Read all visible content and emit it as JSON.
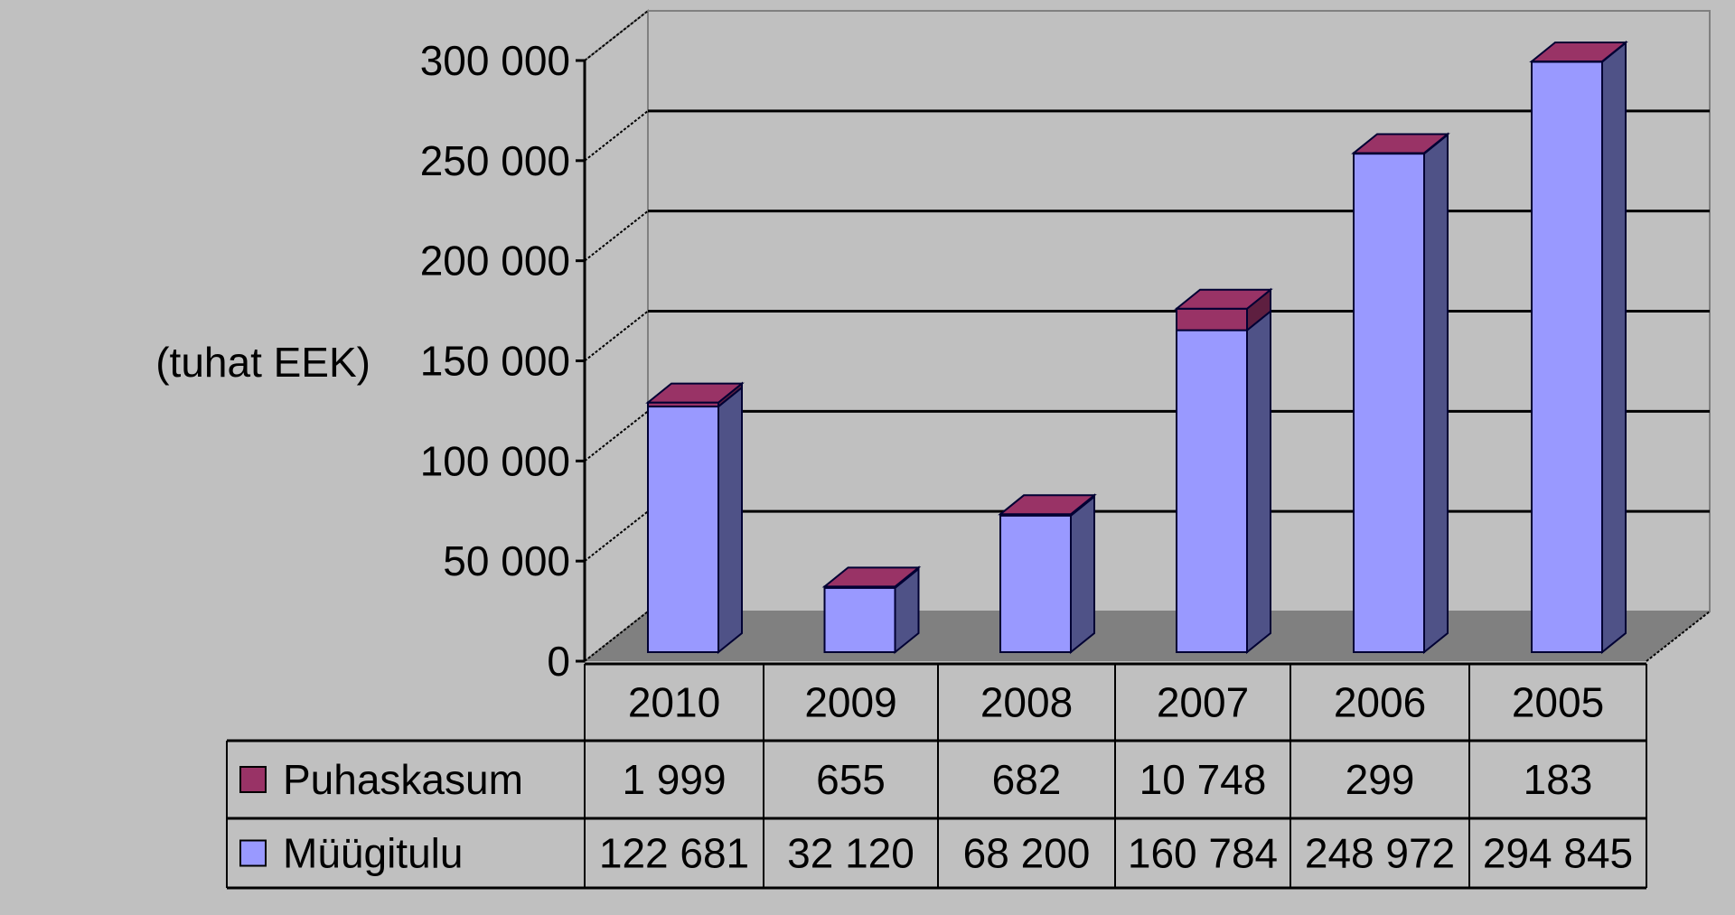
{
  "chart_data": {
    "type": "bar",
    "subtype": "stacked-3d-column-with-data-table",
    "title": "",
    "xlabel": "",
    "ylabel": "(tuhat EEK)",
    "ylim": [
      0,
      300000
    ],
    "y_ticks": [
      0,
      50000,
      100000,
      150000,
      200000,
      250000,
      300000
    ],
    "y_tick_labels": [
      "0",
      "50 000",
      "100 000",
      "150 000",
      "200 000",
      "250 000",
      "300 000"
    ],
    "grid": true,
    "legend_position": "data-table",
    "categories": [
      "2010",
      "2009",
      "2008",
      "2007",
      "2006",
      "2005"
    ],
    "series": [
      {
        "name": "Müügitulu",
        "values": [
          122681,
          32120,
          68200,
          160784,
          248972,
          294845
        ],
        "value_labels": [
          "122 681",
          "32 120",
          "68 200",
          "160 784",
          "248 972",
          "294 845"
        ],
        "color": "#9999FF",
        "side_color": "#4F5287"
      },
      {
        "name": "Puhaskasum",
        "values": [
          1999,
          655,
          682,
          10748,
          299,
          183
        ],
        "value_labels": [
          "1 999",
          "655",
          "682",
          "10 748",
          "299",
          "183"
        ],
        "color": "#993366",
        "side_color": "#5E1F40"
      }
    ]
  },
  "table": {
    "rows": [
      {
        "legend": "Puhaskasum",
        "color": "#993366",
        "cells": [
          "1 999",
          "655",
          "682",
          "10 748",
          "299",
          "183"
        ]
      },
      {
        "legend": "Müügitulu",
        "color": "#9999FF",
        "cells": [
          "122 681",
          "32 120",
          "68 200",
          "160 784",
          "248 972",
          "294 845"
        ]
      }
    ]
  },
  "colors": {
    "background": "#C0C0C0",
    "floor": "#808080",
    "wall": "#C0C0C0",
    "gridline": "#000000"
  }
}
